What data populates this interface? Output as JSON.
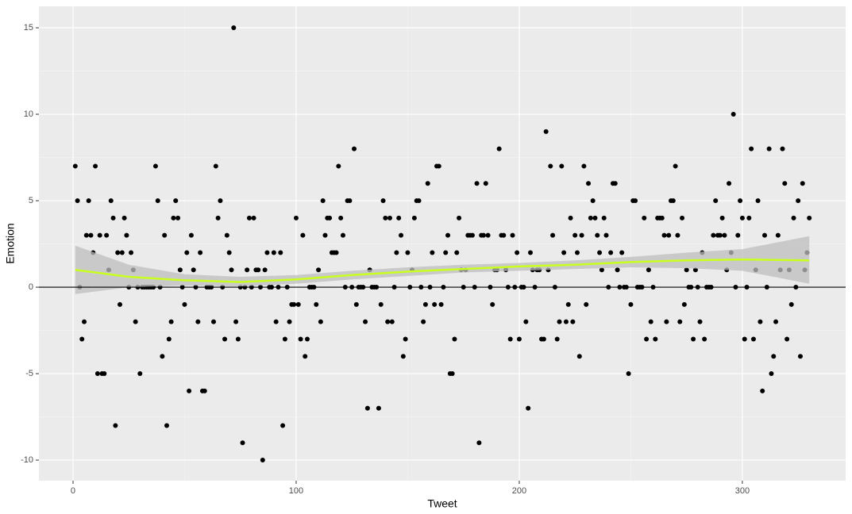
{
  "chart_data": {
    "type": "scatter",
    "xlabel": "Tweet",
    "ylabel": "Emotion",
    "xlim": [
      -15.3,
      346.3
    ],
    "ylim": [
      -11.19,
      16.24
    ],
    "xticks": [
      0,
      100,
      200,
      300
    ],
    "yticks": [
      -10,
      -5,
      0,
      5,
      10,
      15
    ],
    "x_minor_grid": [
      50,
      150,
      250
    ],
    "y_minor_grid": [
      -7.5,
      -2.5,
      2.5,
      7.5,
      12.5
    ],
    "grid": true,
    "hline": 0,
    "color": "#000000",
    "x": [
      1,
      2,
      3,
      4,
      5,
      6,
      7,
      8,
      9,
      10,
      11,
      12,
      13,
      14,
      15,
      16,
      17,
      18,
      19,
      20,
      21,
      22,
      23,
      24,
      25,
      26,
      27,
      28,
      29,
      30,
      31,
      32,
      33,
      34,
      35,
      36,
      37,
      38,
      39,
      40,
      41,
      42,
      43,
      44,
      45,
      46,
      47,
      48,
      49,
      50,
      51,
      52,
      53,
      54,
      55,
      56,
      57,
      58,
      59,
      60,
      61,
      62,
      63,
      64,
      65,
      66,
      67,
      68,
      69,
      70,
      71,
      72,
      73,
      74,
      75,
      76,
      77,
      78,
      79,
      80,
      81,
      82,
      83,
      84,
      85,
      86,
      87,
      88,
      89,
      90,
      91,
      92,
      93,
      94,
      95,
      96,
      97,
      98,
      99,
      100,
      101,
      102,
      103,
      104,
      105,
      106,
      107,
      108,
      109,
      110,
      111,
      112,
      113,
      114,
      115,
      116,
      117,
      118,
      119,
      120,
      121,
      122,
      123,
      124,
      125,
      126,
      127,
      128,
      129,
      130,
      131,
      132,
      133,
      134,
      135,
      136,
      137,
      138,
      139,
      140,
      141,
      142,
      143,
      144,
      145,
      146,
      147,
      148,
      149,
      150,
      151,
      152,
      153,
      154,
      155,
      156,
      157,
      158,
      159,
      160,
      161,
      162,
      163,
      164,
      165,
      166,
      167,
      168,
      169,
      170,
      171,
      172,
      173,
      174,
      175,
      176,
      177,
      178,
      179,
      180,
      181,
      182,
      183,
      184,
      185,
      186,
      187,
      188,
      189,
      190,
      191,
      192,
      193,
      194,
      195,
      196,
      197,
      198,
      199,
      200,
      201,
      202,
      203,
      204,
      205,
      206,
      207,
      208,
      209,
      210,
      211,
      212,
      213,
      214,
      215,
      216,
      217,
      218,
      219,
      220,
      221,
      222,
      223,
      224,
      225,
      226,
      227,
      228,
      229,
      230,
      231,
      232,
      233,
      234,
      235,
      236,
      237,
      238,
      239,
      240,
      241,
      242,
      243,
      244,
      245,
      246,
      247,
      248,
      249,
      250,
      251,
      252,
      253,
      254,
      255,
      256,
      257,
      258,
      259,
      260,
      261,
      262,
      263,
      264,
      265,
      266,
      267,
      268,
      269,
      270,
      271,
      272,
      273,
      274,
      275,
      276,
      277,
      278,
      279,
      280,
      281,
      282,
      283,
      284,
      285,
      286,
      287,
      288,
      289,
      290,
      291,
      292,
      293,
      294,
      295,
      296,
      297,
      298,
      299,
      300,
      301,
      302,
      303,
      304,
      305,
      306,
      307,
      308,
      309,
      310,
      311,
      312,
      313,
      314,
      315,
      316,
      317,
      318,
      319,
      320,
      321,
      322,
      323,
      324,
      325,
      326,
      327,
      328,
      329,
      330
    ],
    "values": [
      7,
      5,
      0,
      -3,
      -2,
      3,
      5,
      3,
      2,
      7,
      -5,
      3,
      -5,
      -5,
      3,
      1,
      5,
      4,
      -8,
      2,
      -1,
      2,
      4,
      3,
      0,
      2,
      1,
      -2,
      0,
      -5,
      0,
      0,
      0,
      0,
      0,
      0,
      7,
      5,
      0,
      -4,
      3,
      -8,
      -3,
      -2,
      4,
      5,
      4,
      1,
      0,
      -1,
      2,
      -6,
      3,
      1,
      0,
      -2,
      2,
      -6,
      -6,
      0,
      0,
      0,
      -2,
      7,
      4,
      5,
      0,
      -3,
      3,
      2,
      1,
      15,
      -2,
      -3,
      0,
      -9,
      0,
      1,
      4,
      0,
      4,
      1,
      1,
      0,
      -10,
      1,
      2,
      0,
      0,
      2,
      -2,
      0,
      2,
      -8,
      -3,
      0,
      -2,
      -1,
      -1,
      4,
      -1,
      -3,
      3,
      -4,
      -3,
      0,
      0,
      0,
      -1,
      1,
      -2,
      5,
      3,
      4,
      4,
      2,
      2,
      2,
      7,
      4,
      3,
      0,
      5,
      5,
      0,
      8,
      -1,
      0,
      0,
      0,
      -2,
      -7,
      1,
      0,
      0,
      0,
      -7,
      -1,
      5,
      4,
      -2,
      4,
      -2,
      0,
      2,
      4,
      3,
      -4,
      -3,
      2,
      0,
      1,
      4,
      5,
      5,
      0,
      -2,
      -1,
      6,
      0,
      2,
      -1,
      7,
      7,
      -1,
      0,
      2,
      3,
      -5,
      -5,
      -3,
      2,
      4,
      1,
      0,
      1,
      3,
      3,
      3,
      0,
      6,
      -9,
      3,
      3,
      6,
      3,
      0,
      -1,
      1,
      1,
      8,
      3,
      3,
      1,
      0,
      -3,
      3,
      0,
      2,
      -3,
      0,
      0,
      -2,
      -7,
      2,
      1,
      0,
      1,
      1,
      -3,
      -3,
      9,
      1,
      7,
      3,
      0,
      -3,
      -2,
      7,
      2,
      -2,
      -1,
      4,
      -2,
      3,
      2,
      -4,
      3,
      7,
      -1,
      6,
      4,
      5,
      4,
      3,
      2,
      1,
      4,
      3,
      0,
      2,
      6,
      6,
      1,
      0,
      2,
      0,
      0,
      -5,
      -1,
      5,
      5,
      0,
      0,
      0,
      4,
      -3,
      1,
      -2,
      0,
      -3,
      4,
      4,
      4,
      3,
      -2,
      3,
      5,
      5,
      7,
      3,
      -2,
      4,
      -1,
      1,
      0,
      0,
      -3,
      1,
      0,
      -2,
      2,
      -3,
      0,
      0,
      0,
      3,
      5,
      3,
      3,
      4,
      3,
      1,
      6,
      2,
      10,
      0,
      3,
      5,
      4,
      -3,
      0,
      4,
      8,
      -3,
      1,
      5,
      -2,
      -6,
      3,
      0,
      8,
      -5,
      -4,
      -2,
      3,
      1,
      8,
      6,
      -3,
      1,
      -1,
      4,
      0,
      5,
      -4,
      6,
      1,
      2,
      4
    ],
    "smooth": {
      "color": "#c8ff1e",
      "band_color": "#bdbdbd",
      "x": [
        1,
        25,
        50,
        75,
        100,
        125,
        150,
        175,
        200,
        225,
        250,
        275,
        300,
        330
      ],
      "values": [
        1.0,
        0.6,
        0.4,
        0.3,
        0.45,
        0.7,
        0.9,
        1.05,
        1.2,
        1.3,
        1.45,
        1.55,
        1.6,
        1.55
      ],
      "lower": [
        -0.4,
        0,
        0.1,
        0.05,
        0.2,
        0.45,
        0.65,
        0.85,
        0.95,
        1.05,
        1.15,
        1.1,
        0.95,
        0.2
      ],
      "upper": [
        2.4,
        1.3,
        0.75,
        0.6,
        0.7,
        0.95,
        1.15,
        1.3,
        1.4,
        1.55,
        1.75,
        2.0,
        2.2,
        2.95
      ]
    }
  }
}
